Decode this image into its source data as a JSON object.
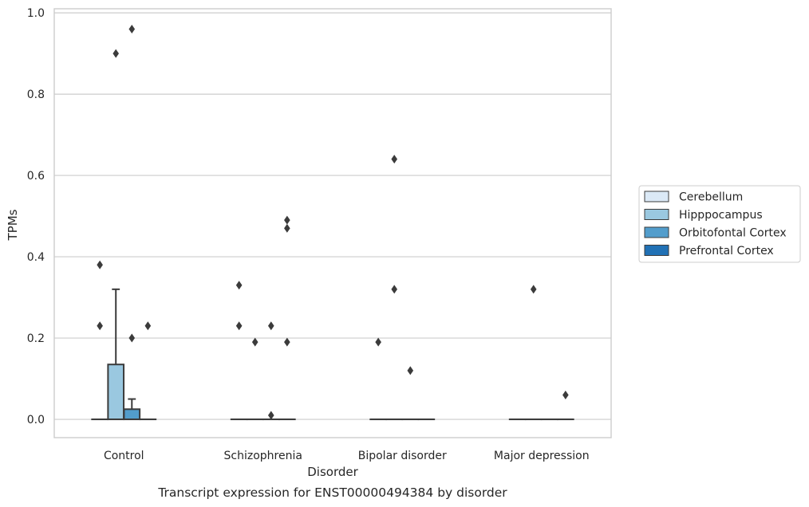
{
  "chart_data": {
    "type": "box",
    "title": "",
    "caption": "Transcript expression for ENST00000494384 by disorder",
    "xlabel": "Disorder",
    "ylabel": "TPMs",
    "ylim": [
      -0.045,
      1.01
    ],
    "yticks": [
      "0.0",
      "0.2",
      "0.4",
      "0.6",
      "0.8",
      "1.0"
    ],
    "ytick_values": [
      0,
      0.2,
      0.4,
      0.6,
      0.8,
      1.0
    ],
    "grid": "horizontal",
    "legend_position": "right",
    "categories": [
      "Control",
      "Schizophrenia",
      "Bipolar disorder",
      "Major depression"
    ],
    "series": [
      {
        "name": "Cerebellum",
        "color": "#dbe9f6"
      },
      {
        "name": "Hipppocampus",
        "color": "#9ac8e0"
      },
      {
        "name": "Orbitofontal Cortex",
        "color": "#529dcc"
      },
      {
        "name": "Prefrontal Cortex",
        "color": "#2171b5"
      }
    ],
    "boxes": [
      {
        "category": 0,
        "series": 0,
        "q1": 0,
        "median": 0,
        "q3": 0,
        "whisker_low": 0,
        "whisker_high": 0,
        "outliers": [
          0.38,
          0.23
        ]
      },
      {
        "category": 0,
        "series": 1,
        "q1": 0,
        "median": 0,
        "q3": 0.135,
        "whisker_low": 0,
        "whisker_high": 0.32,
        "outliers": [
          0.9
        ]
      },
      {
        "category": 0,
        "series": 2,
        "q1": 0,
        "median": 0,
        "q3": 0.025,
        "whisker_low": 0,
        "whisker_high": 0.05,
        "outliers": [
          0.96,
          0.2
        ]
      },
      {
        "category": 0,
        "series": 3,
        "q1": 0,
        "median": 0,
        "q3": 0,
        "whisker_low": 0,
        "whisker_high": 0,
        "outliers": [
          0.23
        ]
      },
      {
        "category": 1,
        "series": 0,
        "q1": 0,
        "median": 0,
        "q3": 0,
        "whisker_low": 0,
        "whisker_high": 0,
        "outliers": [
          0.33,
          0.23
        ]
      },
      {
        "category": 1,
        "series": 1,
        "q1": 0,
        "median": 0,
        "q3": 0,
        "whisker_low": 0,
        "whisker_high": 0,
        "outliers": [
          0.19
        ]
      },
      {
        "category": 1,
        "series": 2,
        "q1": 0,
        "median": 0,
        "q3": 0,
        "whisker_low": 0,
        "whisker_high": 0,
        "outliers": [
          0.23,
          0.01
        ]
      },
      {
        "category": 1,
        "series": 3,
        "q1": 0,
        "median": 0,
        "q3": 0,
        "whisker_low": 0,
        "whisker_high": 0,
        "outliers": [
          0.49,
          0.47,
          0.19
        ]
      },
      {
        "category": 2,
        "series": 0,
        "q1": 0,
        "median": 0,
        "q3": 0,
        "whisker_low": 0,
        "whisker_high": 0,
        "outliers": [
          0.19
        ]
      },
      {
        "category": 2,
        "series": 1,
        "q1": 0,
        "median": 0,
        "q3": 0,
        "whisker_low": 0,
        "whisker_high": 0,
        "outliers": [
          0.64,
          0.32
        ]
      },
      {
        "category": 2,
        "series": 2,
        "q1": 0,
        "median": 0,
        "q3": 0,
        "whisker_low": 0,
        "whisker_high": 0,
        "outliers": [
          0.12
        ]
      },
      {
        "category": 2,
        "series": 3,
        "q1": 0,
        "median": 0,
        "q3": 0,
        "whisker_low": 0,
        "whisker_high": 0,
        "outliers": []
      },
      {
        "category": 3,
        "series": 0,
        "q1": 0,
        "median": 0,
        "q3": 0,
        "whisker_low": 0,
        "whisker_high": 0,
        "outliers": []
      },
      {
        "category": 3,
        "series": 1,
        "q1": 0,
        "median": 0,
        "q3": 0,
        "whisker_low": 0,
        "whisker_high": 0,
        "outliers": [
          0.32
        ]
      },
      {
        "category": 3,
        "series": 2,
        "q1": 0,
        "median": 0,
        "q3": 0,
        "whisker_low": 0,
        "whisker_high": 0,
        "outliers": []
      },
      {
        "category": 3,
        "series": 3,
        "q1": 0,
        "median": 0,
        "q3": 0,
        "whisker_low": 0,
        "whisker_high": 0,
        "outliers": [
          0.06
        ]
      }
    ]
  },
  "colors": {
    "grid": "#cccccc",
    "frame": "#cccccc",
    "box_edge": "#3b3b3b",
    "outlier": "#3b3b3b"
  }
}
